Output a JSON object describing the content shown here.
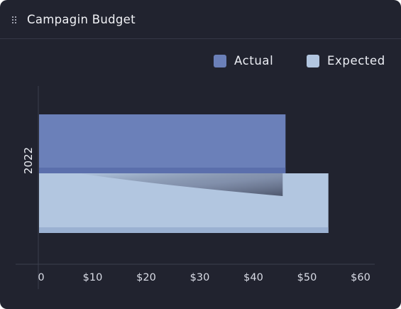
{
  "header": {
    "title": "Campagin Budget",
    "drag_handle_icon": "drag-handle-icon"
  },
  "legend": [
    {
      "name": "Actual",
      "color": "#6b80b9"
    },
    {
      "name": "Expected",
      "color": "#b2c6e0"
    }
  ],
  "chart_data": {
    "type": "bar",
    "orientation": "horizontal",
    "style": "3d",
    "title": "Campagin Budget",
    "categories": [
      "2022"
    ],
    "series": [
      {
        "name": "Actual",
        "values": [
          46
        ],
        "color": "#6b80b9"
      },
      {
        "name": "Expected",
        "values": [
          54
        ],
        "color": "#b2c6e0"
      }
    ],
    "x_ticks": [
      0,
      10,
      20,
      30,
      40,
      50,
      60
    ],
    "x_tick_labels": [
      "0",
      "$10",
      "$20",
      "$30",
      "$40",
      "$50",
      "$60"
    ],
    "xlim": [
      0,
      60
    ],
    "xlabel": "",
    "ylabel": "",
    "grid": false,
    "legend_position": "top-right",
    "background": "#21232f"
  }
}
